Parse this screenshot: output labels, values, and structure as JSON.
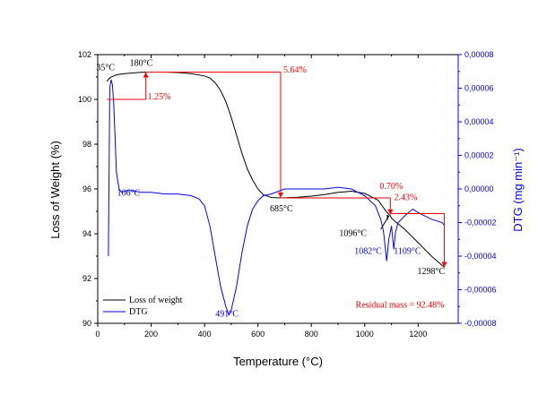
{
  "chart_data": {
    "type": "line",
    "xlabel": "Temperature (°C)",
    "ylabel_left": "Loss of Weight (%)",
    "ylabel_right": "DTG (mg min⁻¹)",
    "xlim": [
      0,
      1350
    ],
    "ylim_left": [
      90,
      102
    ],
    "ylim_right": [
      -8e-05,
      8e-05
    ],
    "x_ticks": [
      "0",
      "200",
      "400",
      "600",
      "800",
      "1000",
      "1200"
    ],
    "y_left_ticks": [
      "90",
      "92",
      "94",
      "96",
      "98",
      "100",
      "102"
    ],
    "y_right_ticks": [
      "-0,00008",
      "-0,00006",
      "-0,00004",
      "-0,00002",
      "0,00000",
      "0,00002",
      "0,00004",
      "0,00006",
      "0,00008"
    ],
    "series": [
      {
        "name": "Loss of weight",
        "color": "#000000",
        "axis": "left",
        "x": [
          35,
          40,
          50,
          70,
          100,
          150,
          180,
          250,
          300,
          350,
          400,
          420,
          440,
          460,
          480,
          500,
          520,
          540,
          560,
          580,
          600,
          620,
          650,
          685,
          750,
          800,
          850,
          900,
          950,
          1000,
          1050,
          1080,
          1096,
          1100,
          1109,
          1150,
          1200,
          1250,
          1298
        ],
        "y": [
          100.8,
          100.9,
          101.0,
          101.1,
          101.15,
          101.2,
          101.22,
          101.22,
          101.2,
          101.15,
          101.05,
          100.95,
          100.75,
          100.4,
          99.9,
          99.2,
          98.4,
          97.6,
          96.9,
          96.4,
          96.0,
          95.75,
          95.62,
          95.6,
          95.63,
          95.68,
          95.75,
          95.85,
          95.9,
          95.8,
          95.5,
          95.0,
          94.8,
          94.7,
          94.6,
          94.2,
          93.6,
          93.0,
          92.5
        ]
      },
      {
        "name": "DTG",
        "color": "#0000ff",
        "axis": "right",
        "x": [
          40,
          45,
          50,
          55,
          60,
          65,
          70,
          80,
          90,
          106,
          130,
          160,
          200,
          250,
          300,
          350,
          380,
          400,
          420,
          440,
          460,
          480,
          491,
          500,
          520,
          540,
          560,
          580,
          600,
          620,
          650,
          700,
          750,
          800,
          850,
          900,
          950,
          1000,
          1040,
          1060,
          1070,
          1075,
          1082,
          1090,
          1100,
          1109,
          1115,
          1125,
          1150,
          1180,
          1200,
          1250,
          1290,
          1300
        ],
        "y": [
          -4e-05,
          6e-05,
          6.5e-05,
          6.2e-05,
          5e-05,
          3e-05,
          1e-05,
          0.0,
          -2e-06,
          -1e-06,
          -1e-06,
          -2e-06,
          -2e-06,
          -3e-06,
          -3e-06,
          -4e-06,
          -6e-06,
          -1e-05,
          -2.2e-05,
          -4e-05,
          -5.8e-05,
          -7e-05,
          -7.5e-05,
          -7.2e-05,
          -5.8e-05,
          -3.8e-05,
          -2.2e-05,
          -1.2e-05,
          -7e-06,
          -4e-06,
          -3e-06,
          0.0,
          0.0,
          0.0,
          0.0,
          1e-06,
          0.0,
          -4e-06,
          -1e-05,
          -1.8e-05,
          -2.5e-05,
          -3.2e-05,
          -4.3e-05,
          -3e-05,
          -2.2e-05,
          -3.6e-05,
          -2.6e-05,
          -2e-05,
          -1.6e-05,
          -1.2e-05,
          -1.4e-05,
          -1.8e-05,
          -2e-05,
          -2.2e-05
        ]
      }
    ],
    "legend": [
      {
        "label": "Loss of weight",
        "color": "#000000"
      },
      {
        "label": "DTG",
        "color": "#0000ff"
      }
    ],
    "annotations": {
      "black": [
        {
          "text": "35°C",
          "x": 35,
          "y": 101.3
        },
        {
          "text": "180°C",
          "x": 180,
          "y": 101.5
        },
        {
          "text": "685°C",
          "x": 685,
          "y": 95.0
        },
        {
          "text": "1096°C",
          "x": 1096,
          "y": 93.9
        },
        {
          "text": "1298°C",
          "x": 1298,
          "y": 92.2
        }
      ],
      "blue": [
        {
          "text": "106°C",
          "x": 106,
          "y": 95.7
        },
        {
          "text": "491°C",
          "x": 491,
          "y": 90.3
        },
        {
          "text": "1082°C",
          "x": 1082,
          "y": 93.1
        },
        {
          "text": "1109°C",
          "x": 1109,
          "y": 93.1
        }
      ],
      "red": [
        {
          "text": "1.25%",
          "x": 180,
          "y": 100.0
        },
        {
          "text": "5.64%",
          "x": 685,
          "y": 101.2
        },
        {
          "text": "0.70%",
          "x": 1096,
          "y": 96.0
        },
        {
          "text": "2.43%",
          "x": 1298,
          "y": 95.5
        },
        {
          "text": "Residual mass = 92.48%",
          "x": 1298,
          "y": 90.7
        }
      ]
    },
    "steps": [
      {
        "from_x": 35,
        "to_x": 180,
        "top": 101.22,
        "bottom": 100.0
      },
      {
        "from_x": 180,
        "to_x": 685,
        "top": 101.22,
        "bottom": 95.6
      },
      {
        "from_x": 685,
        "to_x": 1096,
        "top": 95.6,
        "bottom": 94.85
      },
      {
        "from_x": 1096,
        "to_x": 1298,
        "top": 94.9,
        "bottom": 92.5
      }
    ]
  }
}
